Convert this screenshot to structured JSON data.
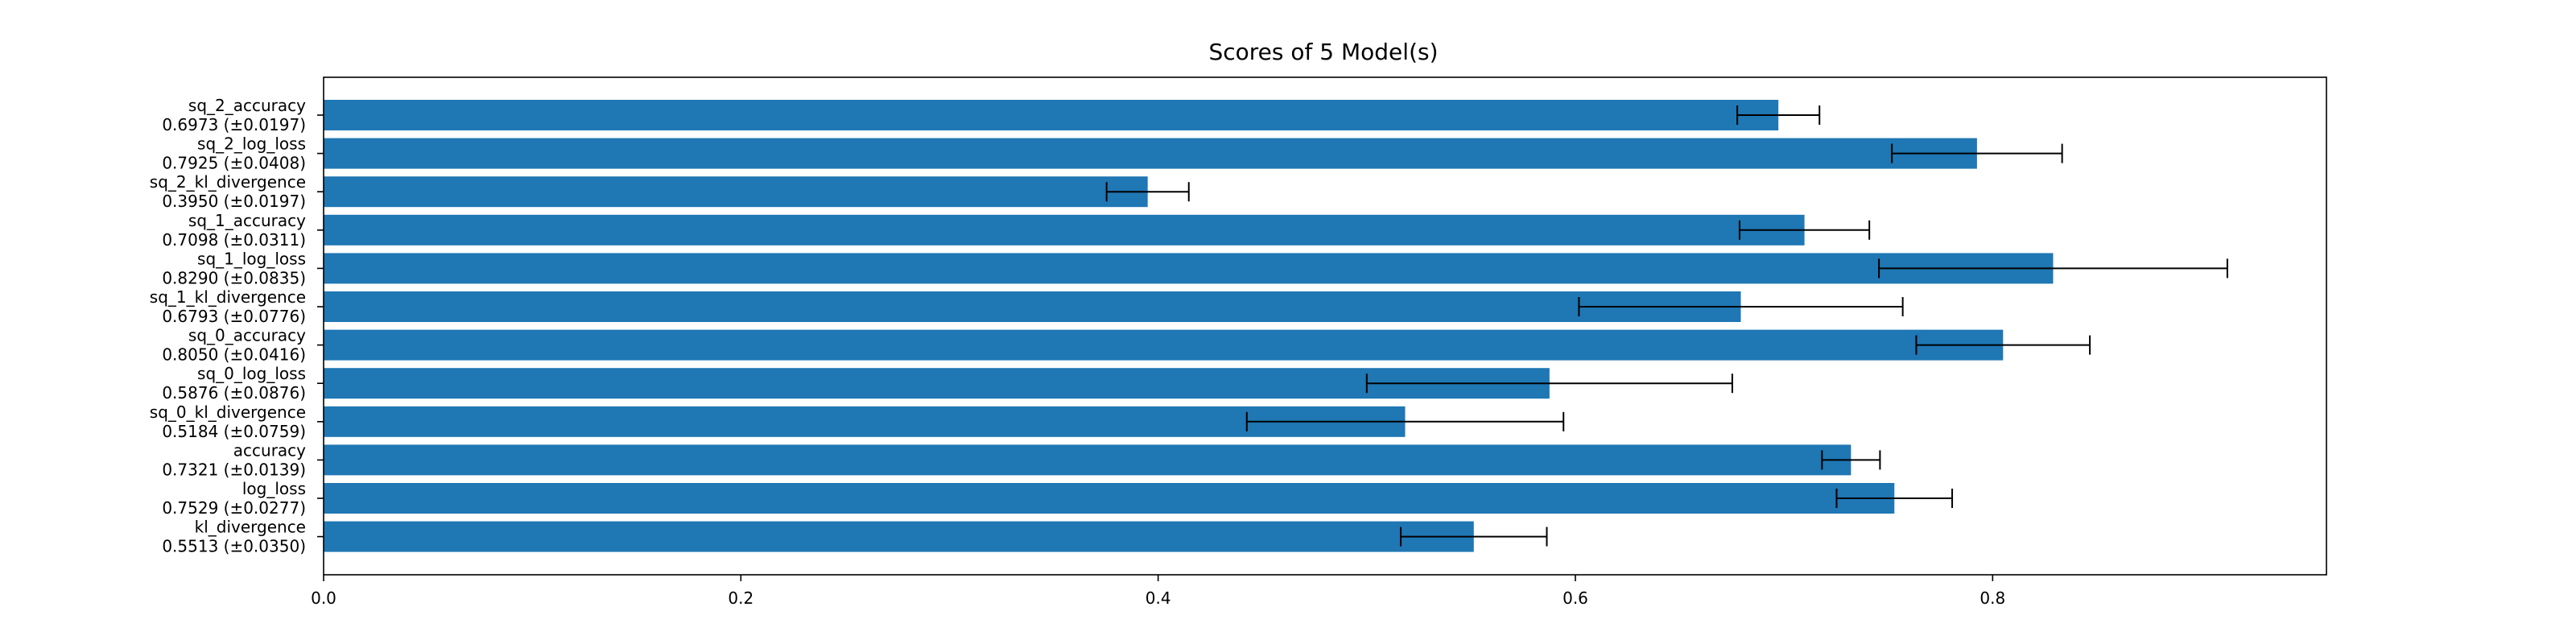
{
  "chart_data": {
    "type": "bar",
    "orientation": "horizontal",
    "title": "Scores of 5 Model(s)",
    "xlabel": "",
    "ylabel": "",
    "xlim": [
      0,
      0.96
    ],
    "x_ticks": [
      "0.0",
      "0.2",
      "0.4",
      "0.6",
      "0.8"
    ],
    "grid": false,
    "bar_color": "#1f77b4",
    "error_color": "#000000",
    "categories": [
      "sq_2_accuracy",
      "sq_2_log_loss",
      "sq_2_kl_divergence",
      "sq_1_accuracy",
      "sq_1_log_loss",
      "sq_1_kl_divergence",
      "sq_0_accuracy",
      "sq_0_log_loss",
      "sq_0_kl_divergence",
      "accuracy",
      "log_loss",
      "kl_divergence"
    ],
    "value_labels": [
      "0.6973 (±0.0197)",
      "0.7925 (±0.0408)",
      "0.3950 (±0.0197)",
      "0.7098 (±0.0311)",
      "0.8290 (±0.0835)",
      "0.6793 (±0.0776)",
      "0.8050 (±0.0416)",
      "0.5876 (±0.0876)",
      "0.5184 (±0.0759)",
      "0.7321 (±0.0139)",
      "0.7529 (±0.0277)",
      "0.5513 (±0.0350)"
    ],
    "values": [
      0.6973,
      0.7925,
      0.395,
      0.7098,
      0.829,
      0.6793,
      0.805,
      0.5876,
      0.5184,
      0.7321,
      0.7529,
      0.5513
    ],
    "errors": [
      0.0197,
      0.0408,
      0.0197,
      0.0311,
      0.0835,
      0.0776,
      0.0416,
      0.0876,
      0.0759,
      0.0139,
      0.0277,
      0.035
    ]
  }
}
